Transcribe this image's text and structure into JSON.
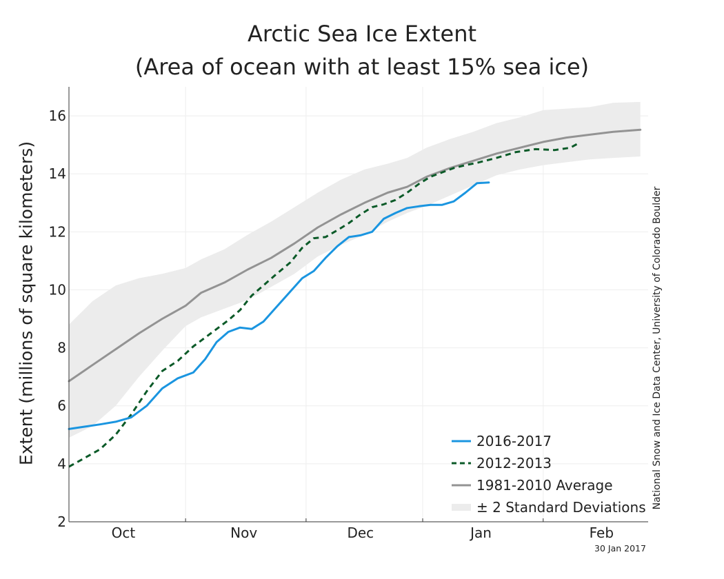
{
  "title_line1": "Arctic Sea Ice Extent",
  "title_line2": "(Area of ocean with at least 15% sea ice)",
  "ylabel": "Extent (millions of square kilometers)",
  "credit": "National Snow and Ice Data Center, University of Colorado Boulder",
  "date_stamp": "30 Jan 2017",
  "legend": [
    {
      "label": "2016-2017",
      "key": "line_2016"
    },
    {
      "label": "2012-2013",
      "key": "line_2012"
    },
    {
      "label": "1981-2010 Average",
      "key": "line_avg"
    },
    {
      "label": "± 2 Standard Deviations",
      "key": "band"
    }
  ],
  "colors": {
    "line_2016": "#1a95e0",
    "line_2012": "#0b5a28",
    "line_avg": "#939393",
    "band": "#ececec",
    "axis": "#333333",
    "grid": "#eeeeee"
  },
  "chart_data": {
    "type": "line",
    "x_unit": "days since Sep 21",
    "xlim": [
      0,
      149
    ],
    "ylim": [
      2,
      17
    ],
    "yticks": [
      2,
      4,
      6,
      8,
      10,
      12,
      14,
      16
    ],
    "month_labels": [
      {
        "label": "Oct",
        "center": 14
      },
      {
        "label": "Nov",
        "center": 45
      },
      {
        "label": "Dec",
        "center": 75
      },
      {
        "label": "Jan",
        "center": 106
      },
      {
        "label": "Feb",
        "center": 137
      }
    ],
    "month_boundaries": [
      30,
      61,
      91,
      122
    ],
    "grid": true,
    "legend_position": "bottom-right",
    "series": [
      {
        "name": "2016-2017",
        "key": "line_2016",
        "style": "solid",
        "points": [
          [
            0,
            5.2
          ],
          [
            4,
            5.28
          ],
          [
            8,
            5.36
          ],
          [
            12,
            5.45
          ],
          [
            16,
            5.6
          ],
          [
            20,
            6.0
          ],
          [
            24,
            6.6
          ],
          [
            28,
            6.95
          ],
          [
            32,
            7.15
          ],
          [
            35,
            7.6
          ],
          [
            38,
            8.2
          ],
          [
            41,
            8.55
          ],
          [
            44,
            8.7
          ],
          [
            47,
            8.65
          ],
          [
            50,
            8.9
          ],
          [
            53,
            9.35
          ],
          [
            57,
            9.95
          ],
          [
            60,
            10.4
          ],
          [
            63,
            10.65
          ],
          [
            66,
            11.1
          ],
          [
            69,
            11.5
          ],
          [
            72,
            11.82
          ],
          [
            75,
            11.88
          ],
          [
            78,
            12.0
          ],
          [
            81,
            12.45
          ],
          [
            84,
            12.65
          ],
          [
            87,
            12.82
          ],
          [
            90,
            12.88
          ],
          [
            93,
            12.93
          ],
          [
            96,
            12.93
          ],
          [
            99,
            13.05
          ],
          [
            102,
            13.35
          ],
          [
            105,
            13.68
          ],
          [
            108,
            13.7
          ]
        ]
      },
      {
        "name": "2012-2013",
        "key": "line_2012",
        "style": "dashed",
        "points": [
          [
            0,
            3.9
          ],
          [
            4,
            4.2
          ],
          [
            8,
            4.5
          ],
          [
            12,
            5.0
          ],
          [
            16,
            5.7
          ],
          [
            20,
            6.5
          ],
          [
            24,
            7.2
          ],
          [
            28,
            7.55
          ],
          [
            32,
            8.05
          ],
          [
            35,
            8.35
          ],
          [
            38,
            8.65
          ],
          [
            41,
            8.95
          ],
          [
            44,
            9.3
          ],
          [
            47,
            9.8
          ],
          [
            50,
            10.15
          ],
          [
            53,
            10.5
          ],
          [
            57,
            10.95
          ],
          [
            60,
            11.45
          ],
          [
            63,
            11.78
          ],
          [
            66,
            11.82
          ],
          [
            69,
            12.05
          ],
          [
            72,
            12.3
          ],
          [
            75,
            12.6
          ],
          [
            78,
            12.85
          ],
          [
            81,
            12.95
          ],
          [
            84,
            13.1
          ],
          [
            87,
            13.35
          ],
          [
            90,
            13.65
          ],
          [
            93,
            13.9
          ],
          [
            96,
            14.05
          ],
          [
            99,
            14.2
          ],
          [
            102,
            14.3
          ],
          [
            105,
            14.38
          ],
          [
            110,
            14.55
          ],
          [
            115,
            14.75
          ],
          [
            120,
            14.85
          ],
          [
            125,
            14.82
          ],
          [
            129,
            14.9
          ],
          [
            131,
            15.05
          ]
        ]
      },
      {
        "name": "1981-2010 Average",
        "key": "line_avg",
        "style": "solid",
        "points": [
          [
            0,
            6.85
          ],
          [
            6,
            7.4
          ],
          [
            12,
            7.95
          ],
          [
            18,
            8.5
          ],
          [
            24,
            9.0
          ],
          [
            30,
            9.45
          ],
          [
            34,
            9.9
          ],
          [
            40,
            10.25
          ],
          [
            46,
            10.7
          ],
          [
            52,
            11.1
          ],
          [
            58,
            11.6
          ],
          [
            64,
            12.15
          ],
          [
            70,
            12.6
          ],
          [
            76,
            13.0
          ],
          [
            82,
            13.35
          ],
          [
            87,
            13.55
          ],
          [
            92,
            13.9
          ],
          [
            98,
            14.2
          ],
          [
            104,
            14.45
          ],
          [
            110,
            14.7
          ],
          [
            116,
            14.9
          ],
          [
            122,
            15.1
          ],
          [
            128,
            15.25
          ],
          [
            134,
            15.35
          ],
          [
            140,
            15.45
          ],
          [
            147,
            15.52
          ]
        ]
      }
    ],
    "band_upper": [
      [
        0,
        8.8
      ],
      [
        6,
        9.6
      ],
      [
        12,
        10.15
      ],
      [
        18,
        10.4
      ],
      [
        24,
        10.55
      ],
      [
        30,
        10.75
      ],
      [
        34,
        11.05
      ],
      [
        40,
        11.4
      ],
      [
        46,
        11.9
      ],
      [
        52,
        12.35
      ],
      [
        58,
        12.85
      ],
      [
        64,
        13.35
      ],
      [
        70,
        13.8
      ],
      [
        76,
        14.15
      ],
      [
        82,
        14.35
      ],
      [
        87,
        14.55
      ],
      [
        92,
        14.9
      ],
      [
        98,
        15.2
      ],
      [
        104,
        15.45
      ],
      [
        110,
        15.75
      ],
      [
        116,
        15.95
      ],
      [
        122,
        16.2
      ],
      [
        128,
        16.25
      ],
      [
        134,
        16.3
      ],
      [
        140,
        16.45
      ],
      [
        147,
        16.48
      ]
    ],
    "band_lower": [
      [
        0,
        4.9
      ],
      [
        6,
        5.3
      ],
      [
        12,
        6.0
      ],
      [
        18,
        7.0
      ],
      [
        24,
        7.9
      ],
      [
        30,
        8.75
      ],
      [
        34,
        9.05
      ],
      [
        40,
        9.35
      ],
      [
        46,
        9.65
      ],
      [
        52,
        10.1
      ],
      [
        58,
        10.55
      ],
      [
        64,
        11.15
      ],
      [
        70,
        11.55
      ],
      [
        76,
        11.9
      ],
      [
        82,
        12.35
      ],
      [
        87,
        12.65
      ],
      [
        92,
        12.9
      ],
      [
        98,
        13.25
      ],
      [
        104,
        13.6
      ],
      [
        110,
        13.95
      ],
      [
        116,
        14.15
      ],
      [
        122,
        14.3
      ],
      [
        128,
        14.4
      ],
      [
        134,
        14.5
      ],
      [
        140,
        14.55
      ],
      [
        147,
        14.6
      ]
    ]
  }
}
